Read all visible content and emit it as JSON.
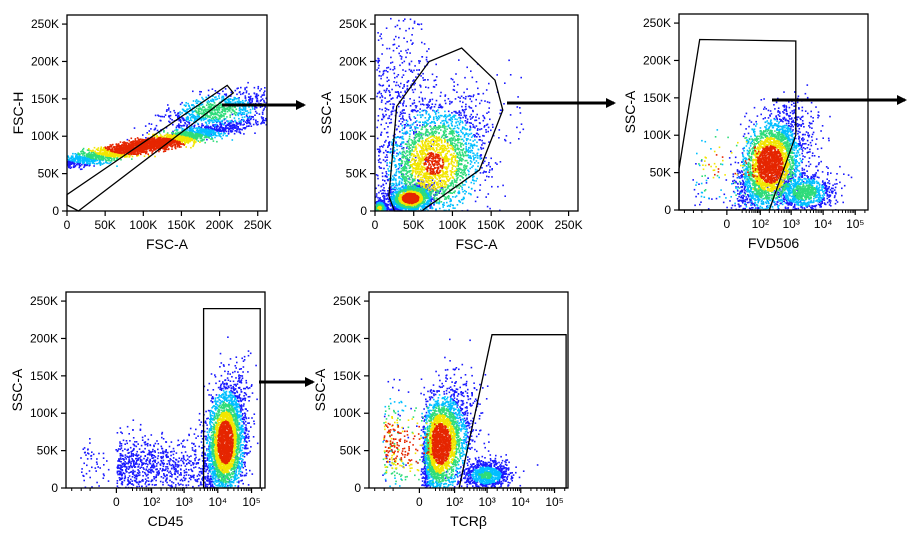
{
  "colors": {
    "density_low": "#1a1aff",
    "density_mid_low": "#00bfff",
    "density_mid": "#2fdc7a",
    "density_mid_high": "#f2e600",
    "density_high": "#e52600",
    "gate_line": "#000000",
    "arrow": "#000000"
  },
  "chart_data": [
    {
      "id": "fsc-singlets",
      "type": "scatter",
      "subtype": "flow-cytometry-density-dot-plot",
      "xlabel": "FSC-A",
      "ylabel": "FSC-H",
      "x_scale": "linear",
      "y_scale": "linear",
      "xlim": [
        0,
        262144
      ],
      "ylim": [
        0,
        262144
      ],
      "x_ticks": [
        {
          "value": 0,
          "label": "0"
        },
        {
          "value": 50000,
          "label": "50K"
        },
        {
          "value": 100000,
          "label": "100K"
        },
        {
          "value": 150000,
          "label": "150K"
        },
        {
          "value": 200000,
          "label": "200K"
        },
        {
          "value": 250000,
          "label": "250K"
        }
      ],
      "y_ticks": [
        {
          "value": 0,
          "label": "0"
        },
        {
          "value": 50000,
          "label": "50K"
        },
        {
          "value": 100000,
          "label": "100K"
        },
        {
          "value": 150000,
          "label": "150K"
        },
        {
          "value": 200000,
          "label": "200K"
        },
        {
          "value": 250000,
          "label": "250K"
        }
      ],
      "populations": [
        {
          "cx": 100000,
          "cy": 88000,
          "sx": 70000,
          "sy": 16000,
          "rho": 0.95,
          "weight": 1.0,
          "n": 3200
        },
        {
          "cx": 195000,
          "cy": 135000,
          "sx": 35000,
          "sy": 14000,
          "rho": 0.6,
          "weight": 0.5,
          "n": 900
        }
      ],
      "gate": {
        "shape": "polygon",
        "points": [
          [
            0,
            8000
          ],
          [
            0,
            22000
          ],
          [
            210000,
            168000
          ],
          [
            218000,
            158000
          ],
          [
            15000,
            0
          ]
        ]
      },
      "arrow_to": "scatter-cells"
    },
    {
      "id": "scatter-cells",
      "type": "scatter",
      "subtype": "flow-cytometry-density-dot-plot",
      "xlabel": "FSC-A",
      "ylabel": "SSC-A",
      "x_scale": "linear",
      "y_scale": "linear",
      "xlim": [
        0,
        262144
      ],
      "ylim": [
        0,
        262144
      ],
      "x_ticks": [
        {
          "value": 0,
          "label": "0"
        },
        {
          "value": 50000,
          "label": "50K"
        },
        {
          "value": 100000,
          "label": "100K"
        },
        {
          "value": 150000,
          "label": "150K"
        },
        {
          "value": 200000,
          "label": "200K"
        },
        {
          "value": 250000,
          "label": "250K"
        }
      ],
      "y_ticks": [
        {
          "value": 0,
          "label": "0"
        },
        {
          "value": 50000,
          "label": "50K"
        },
        {
          "value": 100000,
          "label": "100K"
        },
        {
          "value": 150000,
          "label": "150K"
        },
        {
          "value": 200000,
          "label": "200K"
        },
        {
          "value": 250000,
          "label": "250K"
        }
      ],
      "populations": [
        {
          "cx": 45000,
          "cy": 18000,
          "sx": 14000,
          "sy": 9000,
          "rho": 0.3,
          "weight": 1.0,
          "n": 1600
        },
        {
          "cx": 75000,
          "cy": 65000,
          "sx": 35000,
          "sy": 42000,
          "rho": 0.35,
          "weight": 0.8,
          "n": 2600
        },
        {
          "cx": 5000,
          "cy": 5000,
          "sx": 5000,
          "sy": 5000,
          "rho": 0,
          "weight": 0.6,
          "n": 350
        },
        {
          "cx": 30000,
          "cy": 150000,
          "sx": 25000,
          "sy": 60000,
          "rho": 0,
          "weight": 0.1,
          "n": 500
        }
      ],
      "gate": {
        "shape": "polygon",
        "points": [
          [
            18000,
            20000
          ],
          [
            28000,
            140000
          ],
          [
            70000,
            200000
          ],
          [
            112000,
            218000
          ],
          [
            155000,
            175000
          ],
          [
            165000,
            135000
          ],
          [
            135000,
            55000
          ],
          [
            60000,
            0
          ],
          [
            25000,
            0
          ]
        ]
      },
      "arrow_to": "viability"
    },
    {
      "id": "viability",
      "type": "scatter",
      "subtype": "flow-cytometry-density-dot-plot",
      "xlabel": "FVD506",
      "ylabel": "SSC-A",
      "x_scale": "biexponential",
      "y_scale": "linear",
      "xlim": [
        -300,
        250000
      ],
      "ylim": [
        0,
        262144
      ],
      "x_ticks": [
        {
          "value": 0,
          "label": "0"
        },
        {
          "value": 100,
          "label": "10^2"
        },
        {
          "value": 1000,
          "label": "10^3"
        },
        {
          "value": 10000,
          "label": "10^4"
        },
        {
          "value": 100000,
          "label": "10^5"
        }
      ],
      "y_ticks": [
        {
          "value": 0,
          "label": "0"
        },
        {
          "value": 50000,
          "label": "50K"
        },
        {
          "value": 100000,
          "label": "100K"
        },
        {
          "value": 150000,
          "label": "150K"
        },
        {
          "value": 200000,
          "label": "200K"
        },
        {
          "value": 250000,
          "label": "250K"
        }
      ],
      "populations": [
        {
          "cx": 200,
          "cy": 62000,
          "sx_log": 0.55,
          "sy": 33000,
          "rho": 0.4,
          "weight": 1.0,
          "n": 3200
        },
        {
          "cx": 2500,
          "cy": 25000,
          "sx_log": 0.45,
          "sy": 13000,
          "rho": 0,
          "weight": 0.5,
          "n": 900
        }
      ],
      "gate": {
        "shape": "polygon",
        "points": [
          [
            -300,
            55000
          ],
          [
            -60,
            228000
          ],
          [
            1400,
            226000
          ],
          [
            1400,
            100000
          ],
          [
            200,
            0
          ],
          [
            -300,
            0
          ]
        ]
      },
      "arrow_to": "offscreen-right"
    },
    {
      "id": "cd45-leukocytes",
      "type": "scatter",
      "subtype": "flow-cytometry-density-dot-plot",
      "xlabel": "CD45",
      "ylabel": "SSC-A",
      "x_scale": "biexponential",
      "y_scale": "linear",
      "xlim": [
        -300,
        250000
      ],
      "ylim": [
        0,
        262144
      ],
      "x_ticks": [
        {
          "value": 0,
          "label": "0"
        },
        {
          "value": 100,
          "label": "10^2"
        },
        {
          "value": 1000,
          "label": "10^3"
        },
        {
          "value": 10000,
          "label": "10^4"
        },
        {
          "value": 100000,
          "label": "10^5"
        }
      ],
      "y_ticks": [
        {
          "value": 0,
          "label": "0"
        },
        {
          "value": 50000,
          "label": "50K"
        },
        {
          "value": 100000,
          "label": "100K"
        },
        {
          "value": 150000,
          "label": "150K"
        },
        {
          "value": 200000,
          "label": "200K"
        },
        {
          "value": 250000,
          "label": "250K"
        }
      ],
      "populations": [
        {
          "cx": 16000,
          "cy": 62000,
          "sx_log": 0.3,
          "sy": 38000,
          "rho": 0.3,
          "weight": 1.0,
          "n": 3200
        },
        {
          "cx": 100,
          "cy": 30000,
          "sx_log": 1.1,
          "sy": 20000,
          "rho": 0,
          "weight": 0.15,
          "n": 900
        }
      ],
      "gate": {
        "shape": "rectangle",
        "points": [
          [
            3800,
            0
          ],
          [
            3800,
            240000
          ],
          [
            180000,
            240000
          ],
          [
            180000,
            0
          ]
        ]
      },
      "arrow_to": "tcrb"
    },
    {
      "id": "tcrb",
      "type": "scatter",
      "subtype": "flow-cytometry-density-dot-plot",
      "xlabel": "TCRβ",
      "ylabel": "SSC-A",
      "x_scale": "biexponential",
      "y_scale": "linear",
      "xlim": [
        -300,
        250000
      ],
      "ylim": [
        0,
        262144
      ],
      "x_ticks": [
        {
          "value": 0,
          "label": "0"
        },
        {
          "value": 100,
          "label": "10^2"
        },
        {
          "value": 1000,
          "label": "10^3"
        },
        {
          "value": 10000,
          "label": "10^4"
        },
        {
          "value": 100000,
          "label": "10^5"
        }
      ],
      "y_ticks": [
        {
          "value": 0,
          "label": "0"
        },
        {
          "value": 50000,
          "label": "50K"
        },
        {
          "value": 100000,
          "label": "100K"
        },
        {
          "value": 150000,
          "label": "150K"
        },
        {
          "value": 200000,
          "label": "200K"
        },
        {
          "value": 250000,
          "label": "250K"
        }
      ],
      "populations": [
        {
          "cx": 30,
          "cy": 60000,
          "sx_log": 0.5,
          "sy": 36000,
          "rho": 0.35,
          "weight": 1.0,
          "n": 3200
        },
        {
          "cx": 900,
          "cy": 18000,
          "sx_log": 0.35,
          "sy": 9000,
          "rho": 0,
          "weight": 0.4,
          "n": 900
        }
      ],
      "gate": {
        "shape": "polygon",
        "points": [
          [
            140,
            0
          ],
          [
            1400,
            205000
          ],
          [
            220000,
            205000
          ],
          [
            220000,
            0
          ]
        ]
      },
      "arrow_to": null
    }
  ]
}
